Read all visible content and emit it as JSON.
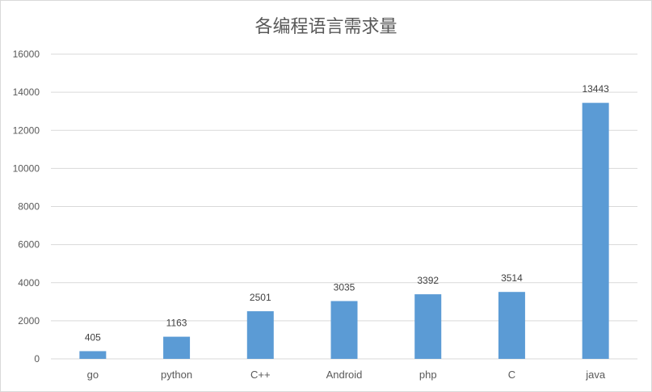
{
  "chart_data": {
    "type": "bar",
    "title": "各编程语言需求量",
    "xlabel": "",
    "ylabel": "",
    "categories": [
      "go",
      "python",
      "C++",
      "Android",
      "php",
      "C",
      "java"
    ],
    "values": [
      405,
      1163,
      2501,
      3035,
      3392,
      3514,
      13443
    ],
    "data_labels": [
      "405",
      "1163",
      "2501",
      "3035",
      "3392",
      "3514",
      "13443"
    ],
    "ylim": [
      0,
      16000
    ],
    "yticks": [
      0,
      2000,
      4000,
      6000,
      8000,
      10000,
      12000,
      14000,
      16000
    ],
    "ytick_labels": [
      "0",
      "2000",
      "4000",
      "6000",
      "8000",
      "10000",
      "12000",
      "14000",
      "16000"
    ],
    "grid": true,
    "legend": "none",
    "bar_color": "#5b9bd5",
    "grid_color": "#d9d9d9"
  }
}
